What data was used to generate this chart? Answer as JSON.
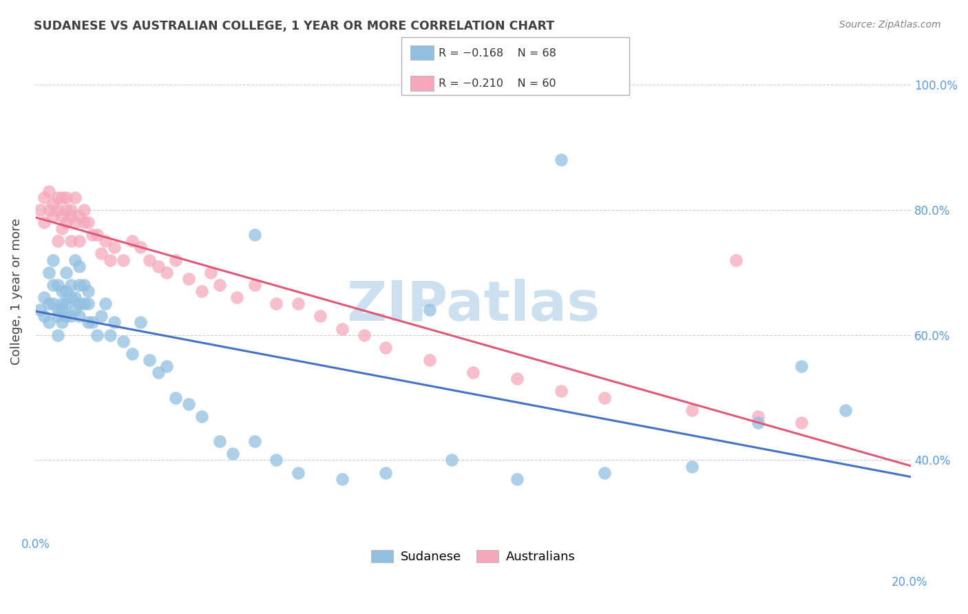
{
  "title": "SUDANESE VS AUSTRALIAN COLLEGE, 1 YEAR OR MORE CORRELATION CHART",
  "source": "Source: ZipAtlas.com",
  "ylabel": "College, 1 year or more",
  "xlim": [
    0.0,
    0.2
  ],
  "ylim": [
    0.28,
    1.06
  ],
  "ytick_labels": [
    "40.0%",
    "60.0%",
    "80.0%",
    "100.0%"
  ],
  "ytick_values": [
    0.4,
    0.6,
    0.8,
    1.0
  ],
  "xtick_values": [
    0.0,
    0.04,
    0.08,
    0.12,
    0.16,
    0.2
  ],
  "blue_color": "#92c0e0",
  "pink_color": "#f5a8bc",
  "blue_line_color": "#4472c4",
  "pink_line_color": "#e05878",
  "watermark_text": "ZIPatlas",
  "watermark_color": "#cce0f0",
  "background_color": "#ffffff",
  "grid_color": "#cccccc",
  "axis_label_color": "#5b9bd5",
  "title_color": "#404040",
  "source_color": "#808080",
  "legend_r_color": "#e05878",
  "legend_n_color": "#5b9bd5",
  "legend_blue_r": "-0.168",
  "legend_blue_n": "68",
  "legend_pink_r": "-0.210",
  "legend_pink_n": "60",
  "sudanese_x": [
    0.001,
    0.002,
    0.002,
    0.003,
    0.003,
    0.003,
    0.004,
    0.004,
    0.004,
    0.005,
    0.005,
    0.005,
    0.005,
    0.006,
    0.006,
    0.006,
    0.006,
    0.007,
    0.007,
    0.007,
    0.007,
    0.008,
    0.008,
    0.008,
    0.009,
    0.009,
    0.009,
    0.01,
    0.01,
    0.01,
    0.01,
    0.011,
    0.011,
    0.012,
    0.012,
    0.012,
    0.013,
    0.014,
    0.015,
    0.016,
    0.017,
    0.018,
    0.02,
    0.022,
    0.024,
    0.026,
    0.028,
    0.03,
    0.032,
    0.035,
    0.038,
    0.042,
    0.045,
    0.05,
    0.055,
    0.06,
    0.07,
    0.08,
    0.095,
    0.11,
    0.13,
    0.15,
    0.165,
    0.175,
    0.185,
    0.05,
    0.09,
    0.12
  ],
  "sudanese_y": [
    0.64,
    0.66,
    0.63,
    0.65,
    0.62,
    0.7,
    0.68,
    0.72,
    0.65,
    0.64,
    0.68,
    0.63,
    0.6,
    0.65,
    0.62,
    0.64,
    0.67,
    0.65,
    0.67,
    0.7,
    0.63,
    0.63,
    0.66,
    0.68,
    0.64,
    0.66,
    0.72,
    0.65,
    0.68,
    0.63,
    0.71,
    0.65,
    0.68,
    0.65,
    0.62,
    0.67,
    0.62,
    0.6,
    0.63,
    0.65,
    0.6,
    0.62,
    0.59,
    0.57,
    0.62,
    0.56,
    0.54,
    0.55,
    0.5,
    0.49,
    0.47,
    0.43,
    0.41,
    0.43,
    0.4,
    0.38,
    0.37,
    0.38,
    0.4,
    0.37,
    0.38,
    0.39,
    0.46,
    0.55,
    0.48,
    0.76,
    0.64,
    0.88
  ],
  "australians_x": [
    0.001,
    0.002,
    0.002,
    0.003,
    0.003,
    0.004,
    0.004,
    0.005,
    0.005,
    0.005,
    0.006,
    0.006,
    0.006,
    0.007,
    0.007,
    0.007,
    0.008,
    0.008,
    0.008,
    0.009,
    0.009,
    0.01,
    0.01,
    0.011,
    0.011,
    0.012,
    0.013,
    0.014,
    0.015,
    0.016,
    0.017,
    0.018,
    0.02,
    0.022,
    0.024,
    0.026,
    0.028,
    0.03,
    0.032,
    0.035,
    0.038,
    0.042,
    0.046,
    0.05,
    0.055,
    0.06,
    0.065,
    0.07,
    0.08,
    0.09,
    0.1,
    0.11,
    0.12,
    0.13,
    0.15,
    0.165,
    0.175,
    0.04,
    0.075,
    0.16
  ],
  "australians_y": [
    0.8,
    0.82,
    0.78,
    0.83,
    0.8,
    0.81,
    0.79,
    0.8,
    0.75,
    0.82,
    0.79,
    0.77,
    0.82,
    0.8,
    0.78,
    0.82,
    0.79,
    0.75,
    0.8,
    0.78,
    0.82,
    0.79,
    0.75,
    0.78,
    0.8,
    0.78,
    0.76,
    0.76,
    0.73,
    0.75,
    0.72,
    0.74,
    0.72,
    0.75,
    0.74,
    0.72,
    0.71,
    0.7,
    0.72,
    0.69,
    0.67,
    0.68,
    0.66,
    0.68,
    0.65,
    0.65,
    0.63,
    0.61,
    0.58,
    0.56,
    0.54,
    0.53,
    0.51,
    0.5,
    0.48,
    0.47,
    0.46,
    0.7,
    0.6,
    0.72
  ]
}
